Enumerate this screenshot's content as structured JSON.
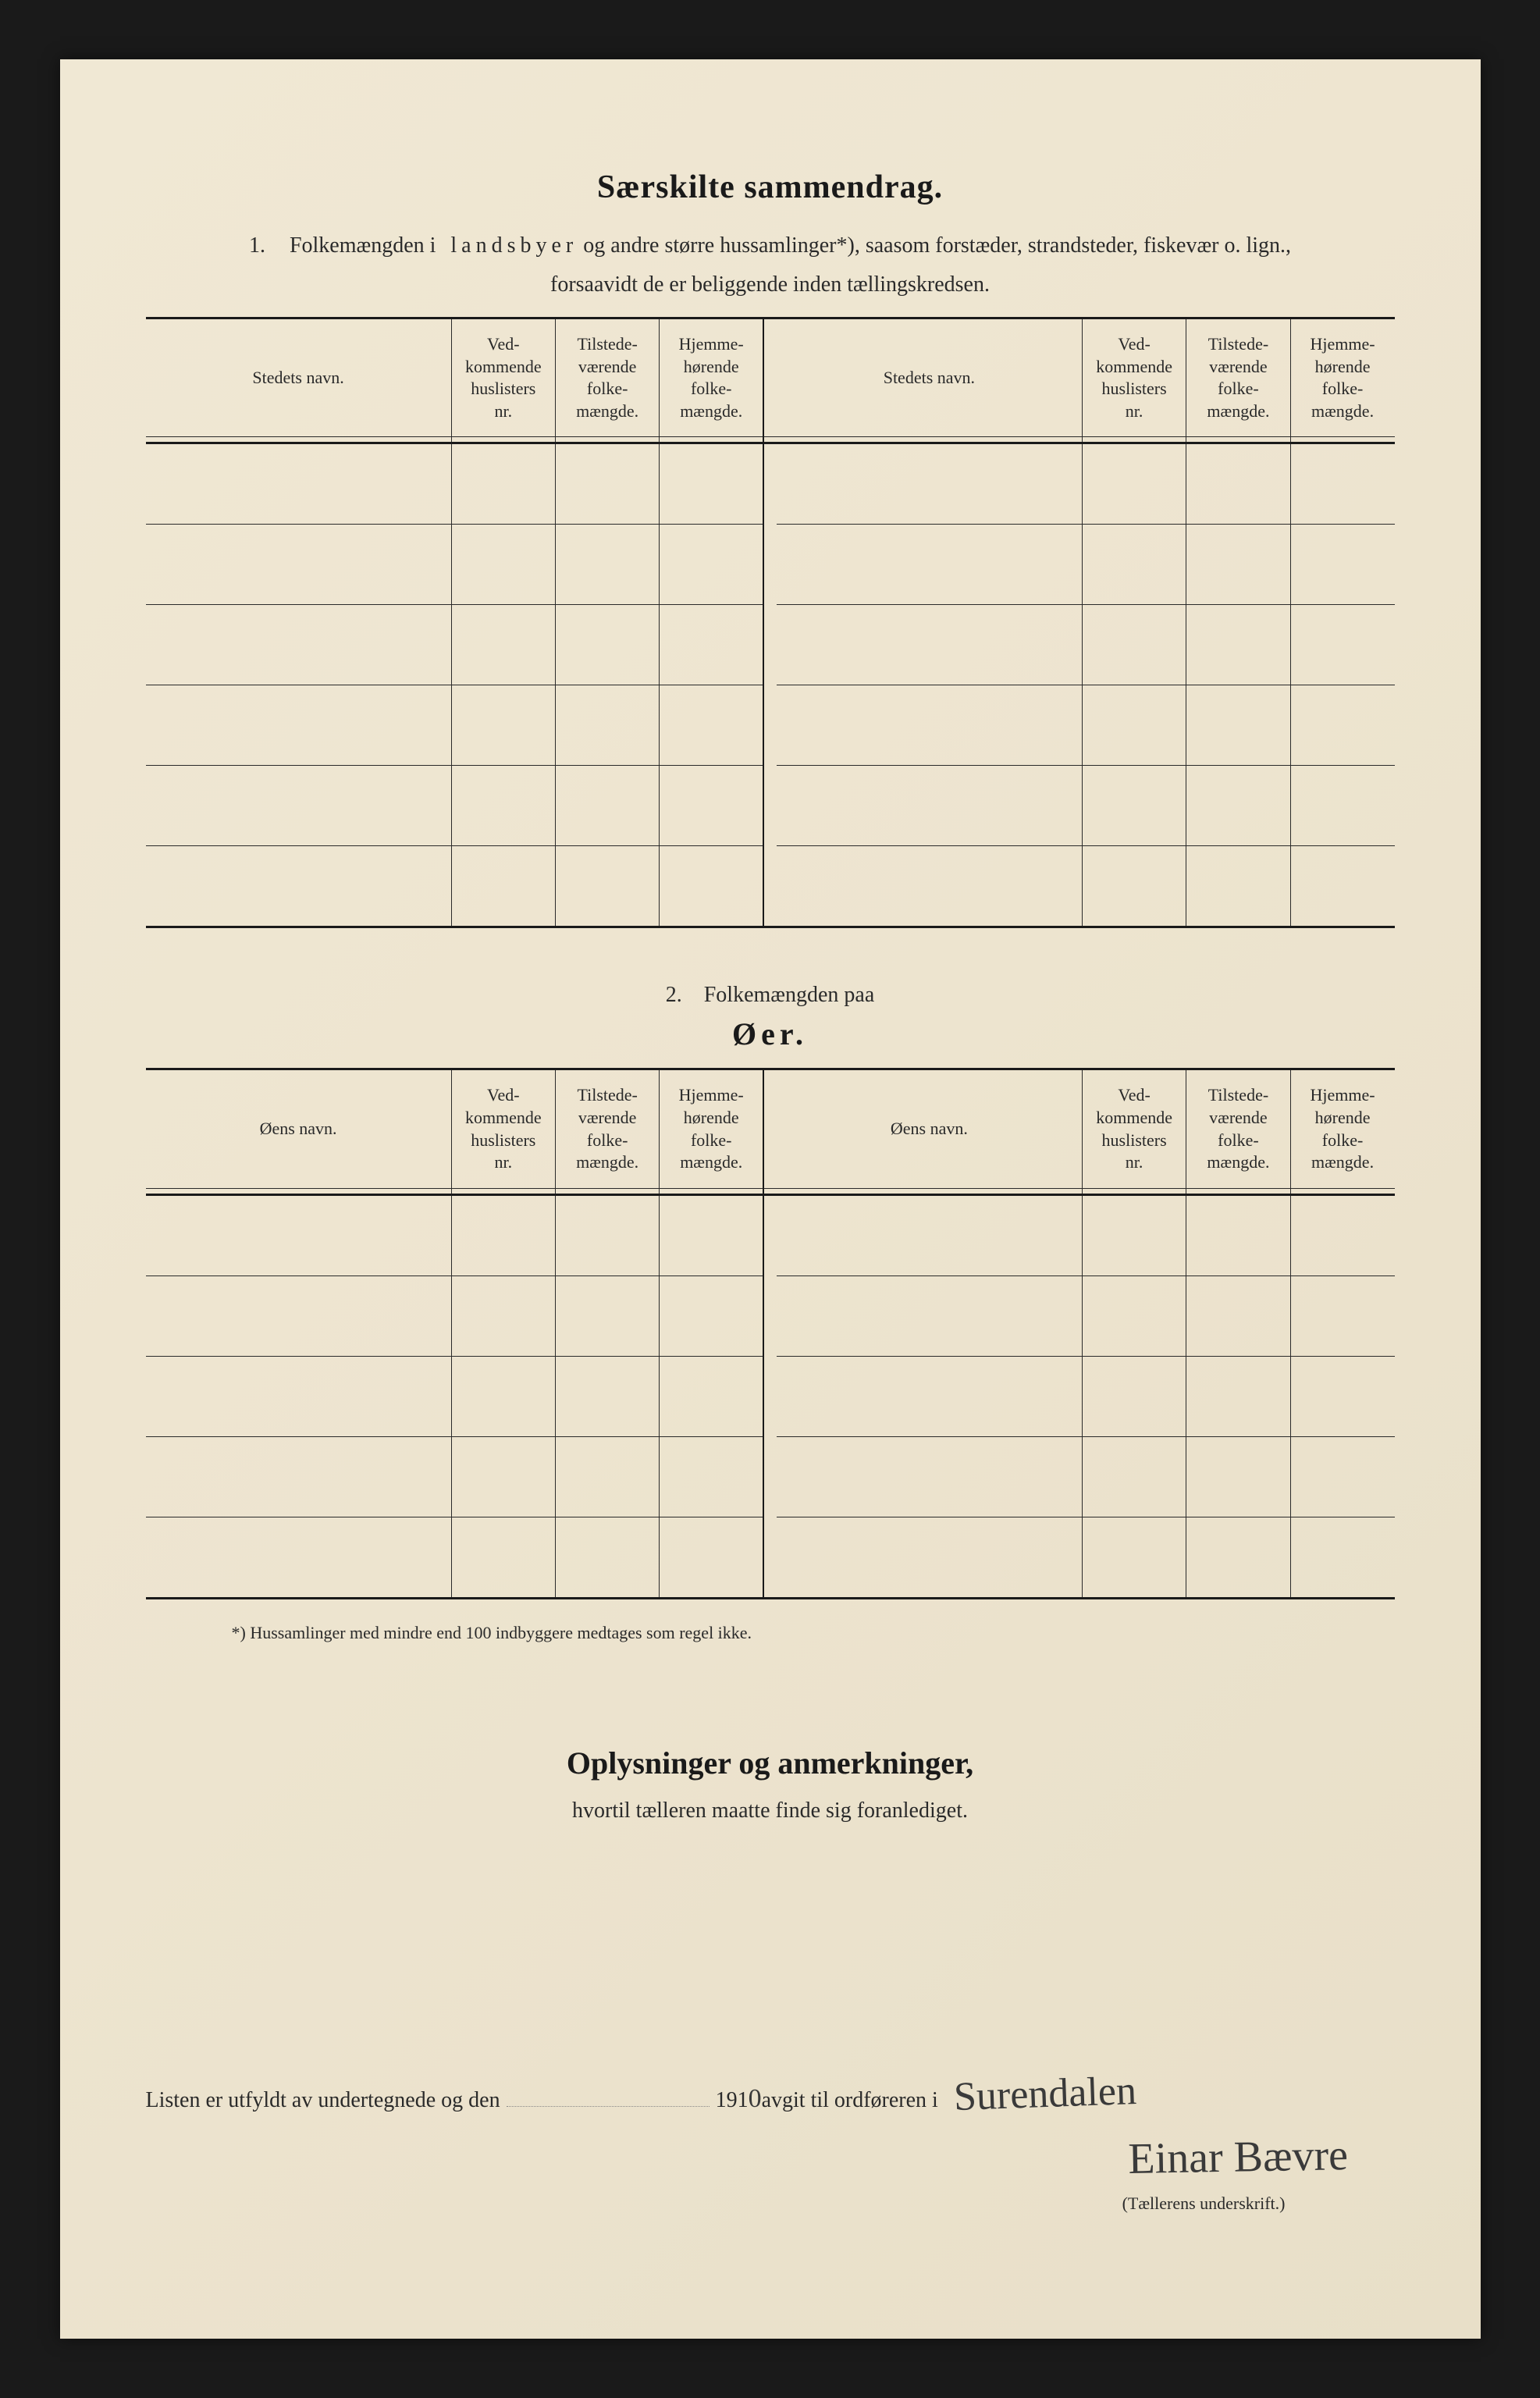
{
  "page": {
    "background_color": "#ede4cf",
    "print_color": "#1a1a1a"
  },
  "section1": {
    "title": "Særskilte sammendrag.",
    "intro_num": "1.",
    "intro_line1_pre": "Folkemængden ",
    "intro_line1_spaced": "i landsbyer",
    "intro_line1_post": " og andre større hussamlinger*), saasom forstæder, strandsteder, fiskevær o. lign.,",
    "intro_line2": "forsaavidt de er beliggende inden tællingskredsen.",
    "columns": {
      "c1": "Stedets navn.",
      "c2": "Ved-\nkommende\nhuslisters\nnr.",
      "c3": "Tilstede-\nværende\nfolke-\nmængde.",
      "c4": "Hjemme-\nhørende\nfolke-\nmængde.",
      "c5": "Stedets navn.",
      "c6": "Ved-\nkommende\nhuslisters\nnr.",
      "c7": "Tilstede-\nværende\nfolke-\nmængde.",
      "c8": "Hjemme-\nhørende\nfolke-\nmængde."
    },
    "row_count": 6
  },
  "section2": {
    "heading_num": "2.",
    "heading_text": "Folkemængden paa",
    "heading_big": "Øer.",
    "columns": {
      "c1": "Øens navn.",
      "c2": "Ved-\nkommende\nhuslisters\nnr.",
      "c3": "Tilstede-\nværende\nfolke-\nmængde.",
      "c4": "Hjemme-\nhørende\nfolke-\nmængde.",
      "c5": "Øens navn.",
      "c6": "Ved-\nkommende\nhuslisters\nnr.",
      "c7": "Tilstede-\nværende\nfolke-\nmængde.",
      "c8": "Hjemme-\nhørende\nfolke-\nmængde."
    },
    "row_count": 5
  },
  "footnote": "*)   Hussamlinger med mindre end 100 indbyggere medtages som regel ikke.",
  "oplysninger": {
    "title": "Oplysninger og anmerkninger,",
    "sub": "hvortil tælleren maatte finde sig foranlediget."
  },
  "signature": {
    "line_pre": "Listen er utfyldt av undertegnede og den",
    "year_print": "191",
    "year_hand": "0",
    "line_mid": " avgit til ordføreren i ",
    "place_handwritten": "Surendalen",
    "signer_handwritten": "Einar Bævre",
    "caption": "(Tællerens underskrift.)"
  }
}
